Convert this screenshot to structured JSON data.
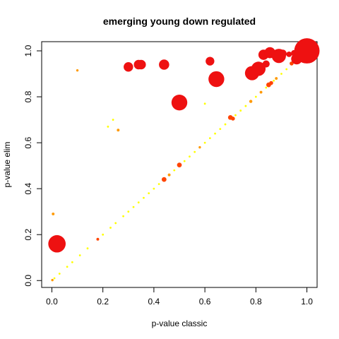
{
  "chart_data": {
    "type": "scatter",
    "title": "emerging young down regulated",
    "xlabel": "p-value classic",
    "ylabel": "p-value elim",
    "xlim": [
      -0.04,
      1.04
    ],
    "ylim": [
      -0.03,
      1.04
    ],
    "xticks": [
      "0.0",
      "0.2",
      "0.4",
      "0.6",
      "0.8",
      "1.0"
    ],
    "yticks": [
      "0.0",
      "0.2",
      "0.4",
      "0.6",
      "0.8",
      "1.0"
    ],
    "grid": false,
    "legend": "none",
    "size_unit": "relative marker size",
    "colors": {
      "large": "#ee1111",
      "medium": "#ff4400",
      "small": "#ff9900",
      "tiny": "#ffff00"
    },
    "points": [
      {
        "x": 0.02,
        "y": 0.16,
        "s": 2.2,
        "c": "large"
      },
      {
        "x": 0.3,
        "y": 0.93,
        "s": 1.2,
        "c": "large"
      },
      {
        "x": 0.34,
        "y": 0.94,
        "s": 1.2,
        "c": "large"
      },
      {
        "x": 0.35,
        "y": 0.94,
        "s": 1.2,
        "c": "large"
      },
      {
        "x": 0.44,
        "y": 0.94,
        "s": 1.3,
        "c": "large"
      },
      {
        "x": 0.5,
        "y": 0.775,
        "s": 2.0,
        "c": "large"
      },
      {
        "x": 0.62,
        "y": 0.955,
        "s": 1.1,
        "c": "large"
      },
      {
        "x": 0.645,
        "y": 0.877,
        "s": 2.0,
        "c": "large"
      },
      {
        "x": 0.785,
        "y": 0.903,
        "s": 1.8,
        "c": "large"
      },
      {
        "x": 0.81,
        "y": 0.922,
        "s": 1.8,
        "c": "large"
      },
      {
        "x": 0.83,
        "y": 0.983,
        "s": 1.3,
        "c": "large"
      },
      {
        "x": 0.84,
        "y": 0.943,
        "s": 0.9,
        "c": "large"
      },
      {
        "x": 0.855,
        "y": 0.992,
        "s": 1.4,
        "c": "large"
      },
      {
        "x": 0.89,
        "y": 0.978,
        "s": 1.8,
        "c": "large"
      },
      {
        "x": 0.905,
        "y": 0.988,
        "s": 1.0,
        "c": "large"
      },
      {
        "x": 0.93,
        "y": 0.985,
        "s": 0.7,
        "c": "large"
      },
      {
        "x": 0.95,
        "y": 0.99,
        "s": 0.8,
        "c": "large"
      },
      {
        "x": 0.96,
        "y": 0.965,
        "s": 1.4,
        "c": "large"
      },
      {
        "x": 0.975,
        "y": 0.985,
        "s": 1.6,
        "c": "large"
      },
      {
        "x": 0.99,
        "y": 0.995,
        "s": 2.4,
        "c": "large"
      },
      {
        "x": 1.0,
        "y": 1.0,
        "s": 3.2,
        "c": "large"
      },
      {
        "x": 0.44,
        "y": 0.44,
        "s": 0.6,
        "c": "medium"
      },
      {
        "x": 0.5,
        "y": 0.503,
        "s": 0.6,
        "c": "medium"
      },
      {
        "x": 0.7,
        "y": 0.71,
        "s": 0.6,
        "c": "medium"
      },
      {
        "x": 0.71,
        "y": 0.705,
        "s": 0.5,
        "c": "medium"
      },
      {
        "x": 0.85,
        "y": 0.852,
        "s": 0.6,
        "c": "medium"
      },
      {
        "x": 0.86,
        "y": 0.86,
        "s": 0.5,
        "c": "medium"
      },
      {
        "x": 0.94,
        "y": 0.945,
        "s": 0.5,
        "c": "medium"
      },
      {
        "x": 0.18,
        "y": 0.18,
        "s": 0.35,
        "c": "medium"
      },
      {
        "x": 0.005,
        "y": 0.29,
        "s": 0.35,
        "c": "small"
      },
      {
        "x": 0.26,
        "y": 0.655,
        "s": 0.35,
        "c": "small"
      },
      {
        "x": 0.1,
        "y": 0.915,
        "s": 0.3,
        "c": "small"
      },
      {
        "x": 0.46,
        "y": 0.46,
        "s": 0.35,
        "c": "small"
      },
      {
        "x": 0.58,
        "y": 0.58,
        "s": 0.3,
        "c": "small"
      },
      {
        "x": 0.78,
        "y": 0.78,
        "s": 0.4,
        "c": "small"
      },
      {
        "x": 0.82,
        "y": 0.82,
        "s": 0.35,
        "c": "small"
      },
      {
        "x": 0.88,
        "y": 0.88,
        "s": 0.35,
        "c": "small"
      },
      {
        "x": 0.96,
        "y": 0.96,
        "s": 0.45,
        "c": "small"
      },
      {
        "x": 0.002,
        "y": 0.002,
        "s": 0.3,
        "c": "small"
      },
      {
        "x": 0.22,
        "y": 0.67,
        "s": 0.25,
        "c": "tiny"
      },
      {
        "x": 0.24,
        "y": 0.7,
        "s": 0.25,
        "c": "tiny"
      },
      {
        "x": 0.6,
        "y": 0.77,
        "s": 0.25,
        "c": "tiny"
      },
      {
        "x": 0.01,
        "y": 0.01,
        "s": 0.25,
        "c": "tiny"
      },
      {
        "x": 0.03,
        "y": 0.03,
        "s": 0.25,
        "c": "tiny"
      },
      {
        "x": 0.06,
        "y": 0.06,
        "s": 0.25,
        "c": "tiny"
      },
      {
        "x": 0.08,
        "y": 0.08,
        "s": 0.25,
        "c": "tiny"
      },
      {
        "x": 0.11,
        "y": 0.11,
        "s": 0.25,
        "c": "tiny"
      },
      {
        "x": 0.14,
        "y": 0.14,
        "s": 0.25,
        "c": "tiny"
      },
      {
        "x": 0.2,
        "y": 0.2,
        "s": 0.25,
        "c": "tiny"
      },
      {
        "x": 0.23,
        "y": 0.23,
        "s": 0.25,
        "c": "tiny"
      },
      {
        "x": 0.25,
        "y": 0.25,
        "s": 0.25,
        "c": "tiny"
      },
      {
        "x": 0.28,
        "y": 0.28,
        "s": 0.25,
        "c": "tiny"
      },
      {
        "x": 0.3,
        "y": 0.3,
        "s": 0.25,
        "c": "tiny"
      },
      {
        "x": 0.32,
        "y": 0.32,
        "s": 0.25,
        "c": "tiny"
      },
      {
        "x": 0.34,
        "y": 0.34,
        "s": 0.25,
        "c": "tiny"
      },
      {
        "x": 0.36,
        "y": 0.36,
        "s": 0.25,
        "c": "tiny"
      },
      {
        "x": 0.38,
        "y": 0.38,
        "s": 0.25,
        "c": "tiny"
      },
      {
        "x": 0.4,
        "y": 0.4,
        "s": 0.25,
        "c": "tiny"
      },
      {
        "x": 0.42,
        "y": 0.42,
        "s": 0.25,
        "c": "tiny"
      },
      {
        "x": 0.48,
        "y": 0.48,
        "s": 0.25,
        "c": "tiny"
      },
      {
        "x": 0.52,
        "y": 0.52,
        "s": 0.25,
        "c": "tiny"
      },
      {
        "x": 0.54,
        "y": 0.54,
        "s": 0.25,
        "c": "tiny"
      },
      {
        "x": 0.56,
        "y": 0.56,
        "s": 0.25,
        "c": "tiny"
      },
      {
        "x": 0.6,
        "y": 0.6,
        "s": 0.25,
        "c": "tiny"
      },
      {
        "x": 0.62,
        "y": 0.62,
        "s": 0.25,
        "c": "tiny"
      },
      {
        "x": 0.64,
        "y": 0.64,
        "s": 0.25,
        "c": "tiny"
      },
      {
        "x": 0.66,
        "y": 0.66,
        "s": 0.25,
        "c": "tiny"
      },
      {
        "x": 0.68,
        "y": 0.68,
        "s": 0.25,
        "c": "tiny"
      },
      {
        "x": 0.72,
        "y": 0.72,
        "s": 0.25,
        "c": "tiny"
      },
      {
        "x": 0.74,
        "y": 0.74,
        "s": 0.25,
        "c": "tiny"
      },
      {
        "x": 0.76,
        "y": 0.76,
        "s": 0.25,
        "c": "tiny"
      },
      {
        "x": 0.8,
        "y": 0.8,
        "s": 0.25,
        "c": "tiny"
      },
      {
        "x": 0.84,
        "y": 0.84,
        "s": 0.25,
        "c": "tiny"
      },
      {
        "x": 0.87,
        "y": 0.87,
        "s": 0.25,
        "c": "tiny"
      },
      {
        "x": 0.9,
        "y": 0.9,
        "s": 0.25,
        "c": "tiny"
      },
      {
        "x": 0.92,
        "y": 0.92,
        "s": 0.25,
        "c": "tiny"
      },
      {
        "x": 0.98,
        "y": 0.98,
        "s": 0.25,
        "c": "tiny"
      }
    ]
  }
}
